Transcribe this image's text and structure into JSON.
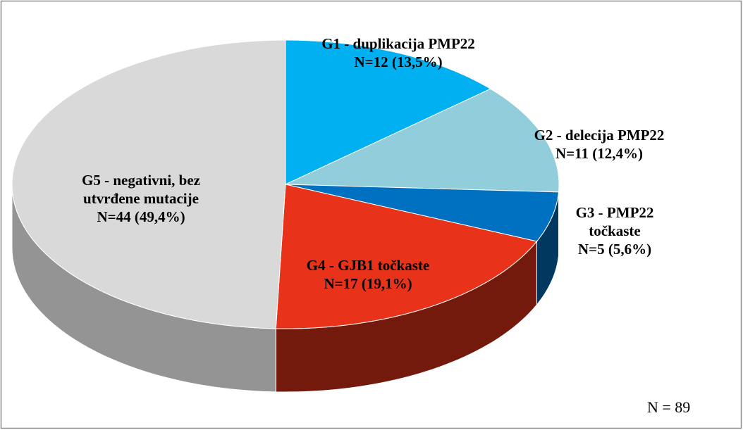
{
  "chart_data": {
    "type": "pie3d",
    "categories": [
      "G1 - duplikacija PMP22",
      "G2 - delecija PMP22",
      "G3 - PMP22 točkaste",
      "G4 - GJB1 točkaste",
      "G5 - negativni, bez utvrđene mutacije"
    ],
    "values": [
      12,
      11,
      5,
      17,
      44
    ],
    "value_labels": [
      "N=12 (13,5%)",
      "N=11 (12,4%)",
      "N=5 (5,6%)",
      "N=17 (19,1%)",
      "N=44 (49,4%)"
    ],
    "colors": [
      "#00b0f0",
      "#92cddc",
      "#0070c0",
      "#e8331a",
      "#d9d9d9"
    ],
    "annotation": "N = 89"
  }
}
